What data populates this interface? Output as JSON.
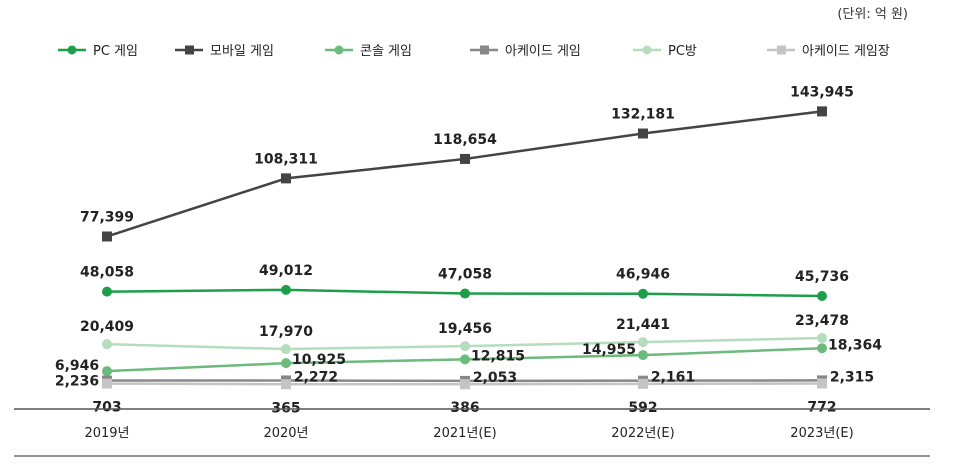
{
  "unit_note": "(단위: 억 원)",
  "chart_data": {
    "type": "line",
    "categories": [
      "2019년",
      "2020년",
      "2021년(E)",
      "2022년(E)",
      "2023년(E)"
    ],
    "series": [
      {
        "name": "PC 게임",
        "color": "#1e9e4a",
        "marker": "circle",
        "values": [
          48058,
          49012,
          47058,
          46946,
          45736
        ],
        "labels": [
          "48,058",
          "49,012",
          "47,058",
          "46,946",
          "45,736"
        ]
      },
      {
        "name": "모바일 게임",
        "color": "#444444",
        "marker": "square",
        "values": [
          77399,
          108311,
          118654,
          132181,
          143945
        ],
        "labels": [
          "77,399",
          "108,311",
          "118,654",
          "132,181",
          "143,945"
        ]
      },
      {
        "name": "콘솔 게임",
        "color": "#6cba7c",
        "marker": "circle",
        "values": [
          6946,
          10925,
          12815,
          14955,
          18364
        ],
        "labels": [
          "6,946",
          "10,925",
          "12,815",
          "14,955",
          "18,364"
        ]
      },
      {
        "name": "아케이드 게임",
        "color": "#888888",
        "marker": "square",
        "values": [
          2236,
          2272,
          2053,
          2161,
          2315
        ],
        "labels": [
          "2,236",
          "2,272",
          "2,053",
          "2,161",
          "2,315"
        ]
      },
      {
        "name": "PC방",
        "color": "#b5dcbd",
        "marker": "circle",
        "values": [
          20409,
          17970,
          19456,
          21441,
          23478
        ],
        "labels": [
          "20,409",
          "17,970",
          "19,456",
          "21,441",
          "23,478"
        ]
      },
      {
        "name": "아케이드 게임장",
        "color": "#c4c4c4",
        "marker": "square",
        "values": [
          703,
          365,
          386,
          592,
          772
        ],
        "labels": [
          "703",
          "365",
          "386",
          "592",
          "772"
        ]
      }
    ],
    "xlabel": "",
    "ylabel": "",
    "grid": false,
    "legend": "top-left",
    "ylim": [
      0,
      150000
    ]
  }
}
